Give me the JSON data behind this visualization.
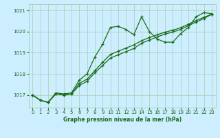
{
  "title": "Graphe pression niveau de la mer (hPa)",
  "bg_color": "#cceeff",
  "grid_color": "#aaccaa",
  "line_color": "#1a6b1a",
  "xlim": [
    -0.5,
    23.5
  ],
  "ylim": [
    1016.4,
    1021.3
  ],
  "yticks": [
    1017,
    1018,
    1019,
    1020,
    1021
  ],
  "xticks": [
    0,
    1,
    2,
    3,
    4,
    5,
    6,
    7,
    8,
    9,
    10,
    11,
    12,
    13,
    14,
    15,
    16,
    17,
    18,
    19,
    20,
    21,
    22,
    23
  ],
  "series1_x": [
    0,
    1,
    2,
    3,
    4,
    5,
    6,
    7,
    8,
    9,
    10,
    11,
    12,
    13,
    14,
    15,
    16,
    17,
    18,
    19,
    20,
    21,
    22,
    23
  ],
  "series1_y": [
    1017.0,
    1016.75,
    1016.65,
    1017.1,
    1017.05,
    1017.1,
    1017.7,
    1018.0,
    1018.8,
    1019.4,
    1020.2,
    1020.25,
    1020.1,
    1019.85,
    1020.7,
    1020.0,
    1019.65,
    1019.5,
    1019.5,
    1019.9,
    1020.2,
    1020.7,
    1020.9,
    1020.85
  ],
  "series2_x": [
    0,
    1,
    2,
    3,
    4,
    5,
    6,
    7,
    8,
    9,
    10,
    11,
    12,
    13,
    14,
    15,
    16,
    17,
    18,
    19,
    20,
    21,
    22,
    23
  ],
  "series2_y": [
    1017.0,
    1016.75,
    1016.65,
    1017.05,
    1017.0,
    1017.05,
    1017.45,
    1017.65,
    1018.05,
    1018.4,
    1018.75,
    1018.9,
    1019.05,
    1019.2,
    1019.45,
    1019.6,
    1019.75,
    1019.88,
    1019.98,
    1020.1,
    1020.28,
    1020.45,
    1020.62,
    1020.82
  ],
  "series3_x": [
    0,
    1,
    2,
    3,
    4,
    5,
    6,
    7,
    8,
    9,
    10,
    11,
    12,
    13,
    14,
    15,
    16,
    17,
    18,
    19,
    20,
    21,
    22,
    23
  ],
  "series3_y": [
    1017.0,
    1016.75,
    1016.65,
    1017.05,
    1017.0,
    1017.05,
    1017.55,
    1017.75,
    1018.15,
    1018.55,
    1018.92,
    1019.07,
    1019.22,
    1019.37,
    1019.57,
    1019.72,
    1019.85,
    1019.97,
    1020.07,
    1020.18,
    1020.35,
    1020.52,
    1020.68,
    1020.82
  ]
}
